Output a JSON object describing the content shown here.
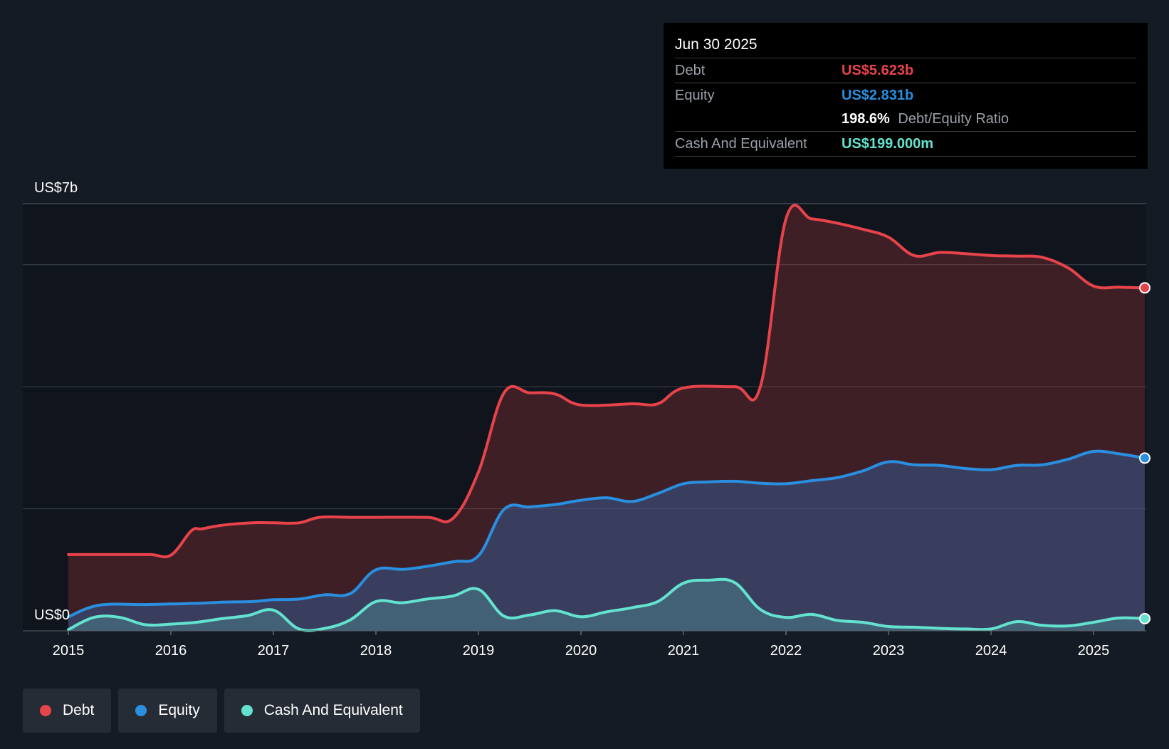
{
  "tooltip": {
    "date": "Jun 30 2025",
    "debt_label": "Debt",
    "debt_value": "US$5.623b",
    "equity_label": "Equity",
    "equity_value": "US$2.831b",
    "ratio_value": "198.6%",
    "ratio_label": "Debt/Equity Ratio",
    "cash_label": "Cash And Equivalent",
    "cash_value": "US$199.000m"
  },
  "legend": {
    "debt": "Debt",
    "equity": "Equity",
    "cash": "Cash And Equivalent"
  },
  "colors": {
    "background": "#151b24",
    "plot_background": "#10151d",
    "debt": "#e8434a",
    "equity": "#2a8fe0",
    "cash": "#63e3cf",
    "grid": "#3a414b"
  },
  "chart_data": {
    "type": "area",
    "title": "",
    "xlabel": "",
    "ylabel": "",
    "y_unit": "US$ billions",
    "ylim": [
      0,
      7
    ],
    "y_axis_labels": [
      "US$7b",
      "US$0"
    ],
    "x_ticks": [
      "2015",
      "2016",
      "2017",
      "2018",
      "2019",
      "2020",
      "2021",
      "2022",
      "2023",
      "2024",
      "2025"
    ],
    "x_range": [
      2015.0,
      2025.5
    ],
    "series": [
      {
        "name": "Debt",
        "x": [
          2015.0,
          2015.5,
          2015.8,
          2016.0,
          2016.2,
          2016.3,
          2016.5,
          2016.8,
          2017.0,
          2017.25,
          2017.45,
          2017.75,
          2018.0,
          2018.5,
          2018.75,
          2019.0,
          2019.25,
          2019.5,
          2019.75,
          2020.0,
          2020.5,
          2020.75,
          2021.0,
          2021.5,
          2021.75,
          2022.0,
          2022.25,
          2022.5,
          2022.75,
          2023.0,
          2023.25,
          2023.5,
          2023.75,
          2024.0,
          2024.25,
          2024.5,
          2024.75,
          2025.0,
          2025.25,
          2025.5
        ],
        "values": [
          1.25,
          1.25,
          1.25,
          1.24,
          1.64,
          1.67,
          1.73,
          1.77,
          1.77,
          1.77,
          1.86,
          1.86,
          1.86,
          1.86,
          1.84,
          2.6,
          3.9,
          3.9,
          3.88,
          3.7,
          3.72,
          3.72,
          3.98,
          4.0,
          4.0,
          6.75,
          6.75,
          6.68,
          6.58,
          6.45,
          6.15,
          6.2,
          6.18,
          6.15,
          6.14,
          6.12,
          5.95,
          5.65,
          5.63,
          5.62
        ]
      },
      {
        "name": "Equity",
        "x": [
          2015.0,
          2015.3,
          2015.75,
          2016.0,
          2016.25,
          2016.5,
          2016.8,
          2017.0,
          2017.25,
          2017.5,
          2017.75,
          2018.0,
          2018.3,
          2018.75,
          2019.0,
          2019.25,
          2019.5,
          2019.75,
          2020.0,
          2020.25,
          2020.5,
          2020.75,
          2021.0,
          2021.25,
          2021.5,
          2021.75,
          2022.0,
          2022.25,
          2022.5,
          2022.75,
          2023.0,
          2023.25,
          2023.5,
          2023.75,
          2024.0,
          2024.25,
          2024.5,
          2024.75,
          2025.0,
          2025.25,
          2025.5
        ],
        "values": [
          0.23,
          0.42,
          0.43,
          0.44,
          0.45,
          0.47,
          0.48,
          0.51,
          0.52,
          0.59,
          0.61,
          1.0,
          1.01,
          1.13,
          1.23,
          1.99,
          2.03,
          2.07,
          2.14,
          2.18,
          2.12,
          2.25,
          2.41,
          2.44,
          2.45,
          2.42,
          2.41,
          2.46,
          2.51,
          2.62,
          2.77,
          2.72,
          2.71,
          2.66,
          2.64,
          2.71,
          2.72,
          2.81,
          2.94,
          2.9,
          2.83
        ]
      },
      {
        "name": "Cash And Equivalent",
        "x": [
          2015.0,
          2015.25,
          2015.5,
          2015.75,
          2016.0,
          2016.25,
          2016.5,
          2016.75,
          2017.0,
          2017.25,
          2017.5,
          2017.75,
          2018.0,
          2018.25,
          2018.5,
          2018.75,
          2019.0,
          2019.25,
          2019.5,
          2019.75,
          2020.0,
          2020.25,
          2020.5,
          2020.75,
          2021.0,
          2021.25,
          2021.5,
          2021.75,
          2022.0,
          2022.25,
          2022.5,
          2022.75,
          2023.0,
          2023.25,
          2023.5,
          2023.75,
          2024.0,
          2024.25,
          2024.5,
          2024.75,
          2025.0,
          2025.25,
          2025.5
        ],
        "values": [
          0.02,
          0.22,
          0.22,
          0.1,
          0.11,
          0.14,
          0.2,
          0.25,
          0.34,
          0.03,
          0.04,
          0.18,
          0.48,
          0.46,
          0.52,
          0.57,
          0.68,
          0.24,
          0.26,
          0.33,
          0.23,
          0.31,
          0.38,
          0.48,
          0.78,
          0.83,
          0.79,
          0.35,
          0.22,
          0.27,
          0.17,
          0.14,
          0.07,
          0.06,
          0.04,
          0.03,
          0.03,
          0.15,
          0.09,
          0.08,
          0.14,
          0.21,
          0.2
        ]
      }
    ]
  }
}
